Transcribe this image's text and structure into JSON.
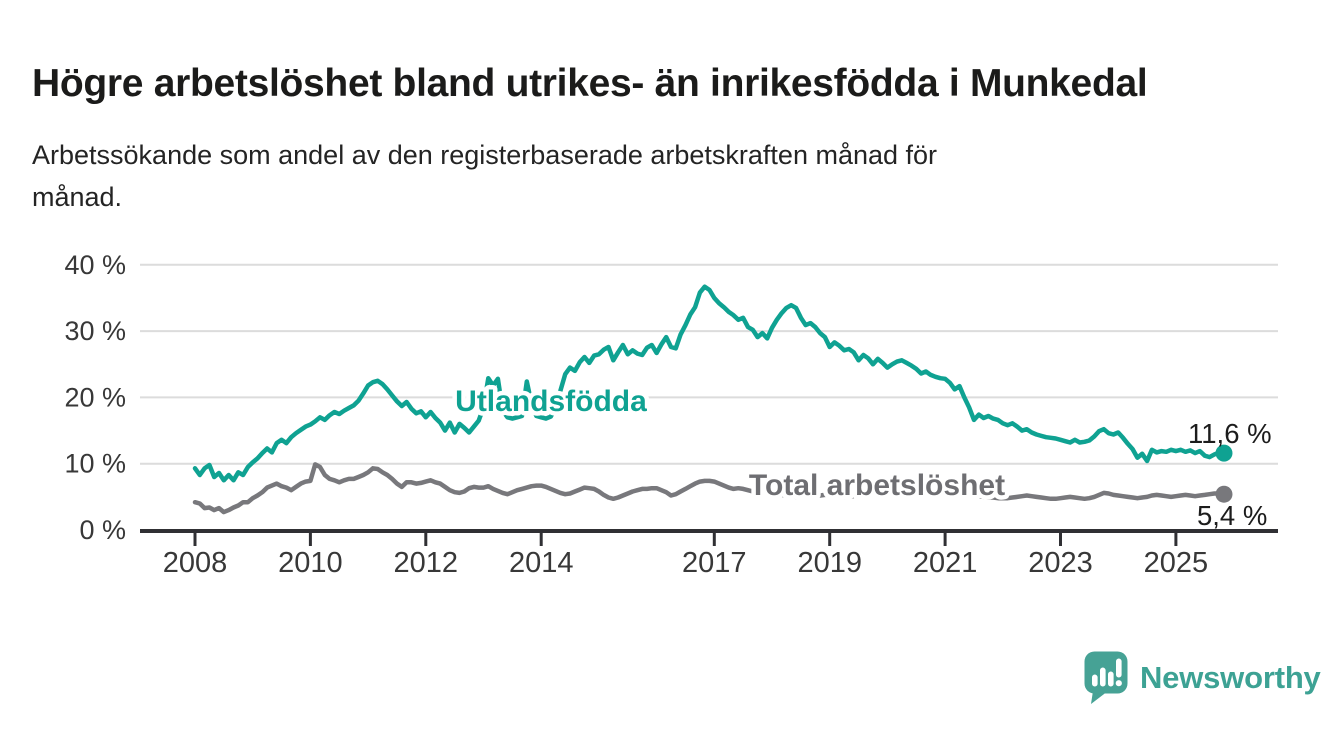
{
  "header": {
    "title": "Högre arbetslöshet bland utrikes- än inrikesfödda i Munkedal",
    "subtitle_lines": [
      "Arbetssökande som andel av den registerbaserade arbetskraften månad för",
      "månad."
    ]
  },
  "branding": {
    "logo_text": "Newsworthy",
    "logo_color": "#46a295",
    "logo_text_color": "#3da294"
  },
  "colors": {
    "accent_teal": "#0fa292",
    "line_gray": "#78787c",
    "gray_label": "#6e6e72",
    "grid": "#dcdcdc",
    "axis": "#303034",
    "tick_text": "#383838",
    "annotation_text": "#1c1c1c"
  },
  "chart_data": {
    "type": "line",
    "x_unit": "month",
    "x_start": "2008-01",
    "x_end": "2025-11",
    "grid": "horizontal",
    "ylim": [
      0,
      40
    ],
    "y_ticks": [
      {
        "value": 0,
        "label": "0 %"
      },
      {
        "value": 10,
        "label": "10 %"
      },
      {
        "value": 20,
        "label": "20 %"
      },
      {
        "value": 30,
        "label": "30 %"
      },
      {
        "value": 40,
        "label": "40 %"
      }
    ],
    "x_ticks": [
      {
        "year": 2008,
        "label": "2008"
      },
      {
        "year": 2010,
        "label": "2010"
      },
      {
        "year": 2012,
        "label": "2012"
      },
      {
        "year": 2014,
        "label": "2014"
      },
      {
        "year": 2017,
        "label": "2017"
      },
      {
        "year": 2019,
        "label": "2019"
      },
      {
        "year": 2021,
        "label": "2021"
      },
      {
        "year": 2023,
        "label": "2023"
      },
      {
        "year": 2025,
        "label": "2025"
      }
    ],
    "series": [
      {
        "name": "Utlandsfödda",
        "color": "#0fa292",
        "label_color": "#0fa292",
        "end_value": 11.6,
        "end_label": "11,6 %",
        "values": [
          9.3,
          8.3,
          9.3,
          9.8,
          8.0,
          8.6,
          7.5,
          8.3,
          7.5,
          8.7,
          8.3,
          9.5,
          10.2,
          10.8,
          11.6,
          12.3,
          11.7,
          13.1,
          13.6,
          13.1,
          14.0,
          14.6,
          15.1,
          15.6,
          15.9,
          16.4,
          17.0,
          16.6,
          17.3,
          17.8,
          17.5,
          18.0,
          18.4,
          18.8,
          19.5,
          20.6,
          21.8,
          22.3,
          22.5,
          22.0,
          21.2,
          20.3,
          19.4,
          18.7,
          19.3,
          18.3,
          17.6,
          17.9,
          17.0,
          17.8,
          16.9,
          16.2,
          15.0,
          16.2,
          14.7,
          16.0,
          15.4,
          14.7,
          15.6,
          16.5,
          18.5,
          22.9,
          21.8,
          22.8,
          18.0,
          17.0,
          16.8,
          17.0,
          17.2,
          22.4,
          19.0,
          17.2,
          17.0,
          16.8,
          17.1,
          18.5,
          21.0,
          23.5,
          24.5,
          24.0,
          25.3,
          26.1,
          25.2,
          26.3,
          26.5,
          27.2,
          27.6,
          25.6,
          26.8,
          27.9,
          26.5,
          27.1,
          26.6,
          26.4,
          27.5,
          27.9,
          26.7,
          28.0,
          29.1,
          27.6,
          27.4,
          29.5,
          30.9,
          32.5,
          33.6,
          35.8,
          36.7,
          36.2,
          35.0,
          34.2,
          33.6,
          32.9,
          32.4,
          31.7,
          32.0,
          30.6,
          30.2,
          29.1,
          29.7,
          28.9,
          30.5,
          31.7,
          32.7,
          33.5,
          33.9,
          33.5,
          32.0,
          30.9,
          31.2,
          30.6,
          29.7,
          29.1,
          27.6,
          28.3,
          27.8,
          27.1,
          27.3,
          26.8,
          25.6,
          26.4,
          25.9,
          25.0,
          25.8,
          25.2,
          24.5,
          25.0,
          25.4,
          25.6,
          25.2,
          24.8,
          24.3,
          23.6,
          23.9,
          23.4,
          23.1,
          22.9,
          22.8,
          22.2,
          21.2,
          21.7,
          20.0,
          18.5,
          16.6,
          17.4,
          16.9,
          17.2,
          16.8,
          16.6,
          16.1,
          15.8,
          16.1,
          15.6,
          15.0,
          15.2,
          14.7,
          14.4,
          14.2,
          14.0,
          13.9,
          13.8,
          13.6,
          13.4,
          13.2,
          13.6,
          13.2,
          13.3,
          13.5,
          14.1,
          14.9,
          15.2,
          14.6,
          14.4,
          14.7,
          13.9,
          13.0,
          12.2,
          10.9,
          11.5,
          10.4,
          12.1,
          11.7,
          11.9,
          11.8,
          12.1,
          11.9,
          12.1,
          11.8,
          12.0,
          11.6,
          11.9,
          11.2,
          11.0,
          11.4,
          11.7,
          11.6
        ]
      },
      {
        "name": "Total arbetslöshet",
        "color": "#78787c",
        "label_color": "#6e6e72",
        "end_value": 5.4,
        "end_label": "5,4 %",
        "values": [
          4.2,
          4.0,
          3.3,
          3.4,
          3.0,
          3.3,
          2.7,
          3.0,
          3.4,
          3.7,
          4.2,
          4.2,
          4.8,
          5.2,
          5.7,
          6.4,
          6.7,
          7.0,
          6.6,
          6.4,
          6.0,
          6.5,
          7.0,
          7.3,
          7.4,
          9.9,
          9.5,
          8.3,
          7.7,
          7.5,
          7.2,
          7.5,
          7.7,
          7.7,
          8.0,
          8.3,
          8.7,
          9.3,
          9.2,
          8.7,
          8.3,
          7.7,
          7.0,
          6.5,
          7.2,
          7.2,
          7.0,
          7.1,
          7.3,
          7.5,
          7.2,
          7.0,
          6.5,
          6.0,
          5.7,
          5.6,
          5.8,
          6.3,
          6.5,
          6.4,
          6.4,
          6.6,
          6.2,
          5.9,
          5.6,
          5.4,
          5.7,
          6.0,
          6.2,
          6.4,
          6.6,
          6.7,
          6.7,
          6.5,
          6.2,
          5.9,
          5.6,
          5.4,
          5.5,
          5.8,
          6.1,
          6.4,
          6.3,
          6.2,
          5.8,
          5.3,
          4.9,
          4.7,
          4.9,
          5.2,
          5.5,
          5.8,
          6.0,
          6.2,
          6.2,
          6.3,
          6.3,
          6.0,
          5.7,
          5.2,
          5.4,
          5.8,
          6.2,
          6.6,
          7.0,
          7.3,
          7.4,
          7.4,
          7.3,
          7.0,
          6.7,
          6.4,
          6.2,
          6.3,
          6.2,
          6.0,
          5.8,
          5.7,
          5.6,
          5.6,
          5.5,
          5.4,
          5.3,
          5.2,
          5.1,
          5.0,
          5.0,
          5.1,
          5.1,
          5.2,
          5.2,
          5.3,
          5.3,
          5.2,
          5.1,
          5.0,
          5.0,
          5.1,
          5.2,
          5.3,
          5.4,
          5.5,
          5.6,
          5.7,
          5.9,
          6.2,
          6.8,
          7.3,
          7.5,
          7.6,
          7.5,
          7.3,
          7.1,
          6.9,
          6.7,
          6.5,
          6.4,
          6.2,
          6.0,
          5.8,
          5.6,
          5.4,
          5.2,
          5.1,
          5.0,
          4.9,
          4.9,
          4.8,
          4.8,
          4.8,
          4.9,
          5.0,
          5.1,
          5.2,
          5.1,
          5.0,
          4.9,
          4.8,
          4.7,
          4.7,
          4.8,
          4.9,
          5.0,
          4.9,
          4.8,
          4.7,
          4.8,
          5.0,
          5.3,
          5.6,
          5.5,
          5.3,
          5.2,
          5.1,
          5.0,
          4.9,
          4.8,
          4.9,
          5.0,
          5.2,
          5.3,
          5.2,
          5.1,
          5.0,
          5.1,
          5.2,
          5.3,
          5.2,
          5.1,
          5.2,
          5.3,
          5.4,
          5.5,
          5.5,
          5.4
        ]
      }
    ]
  }
}
